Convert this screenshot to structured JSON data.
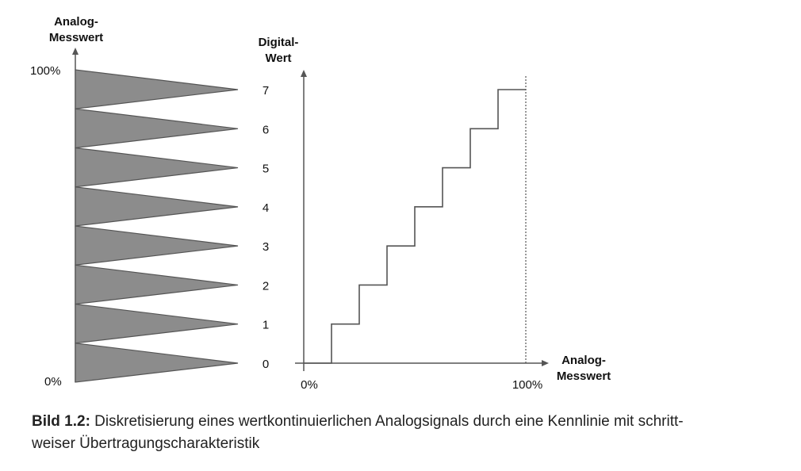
{
  "left_axis": {
    "title_line1": "Analog-",
    "title_line2": "Messwert",
    "top_label": "100%",
    "bottom_label": "0%"
  },
  "digital_levels": [
    "0",
    "1",
    "2",
    "3",
    "4",
    "5",
    "6",
    "7"
  ],
  "right_axis": {
    "y_title_line1": "Digital-",
    "y_title_line2": "Wert",
    "x_title_line1": "Analog-",
    "x_title_line2": "Messwert",
    "x_min_label": "0%",
    "x_max_label": "100%"
  },
  "chart_data": {
    "type": "line",
    "step": true,
    "x": [
      0,
      12.5,
      25,
      37.5,
      50,
      62.5,
      75,
      87.5,
      100
    ],
    "y": [
      0,
      1,
      2,
      3,
      4,
      5,
      6,
      7,
      7
    ],
    "xlim": [
      0,
      100
    ],
    "ylim": [
      0,
      7
    ],
    "x_unit": "%"
  },
  "caption": {
    "number": "Bild 1.2:",
    "line1": " Diskretisierung eines wertkontinuierlichen Analogsignals durch eine Kennlinie mit schritt-",
    "line2": "weiser Übertragungscharakteristik"
  },
  "colors": {
    "triangle_fill": "#8c8c8c",
    "line": "#555555"
  }
}
